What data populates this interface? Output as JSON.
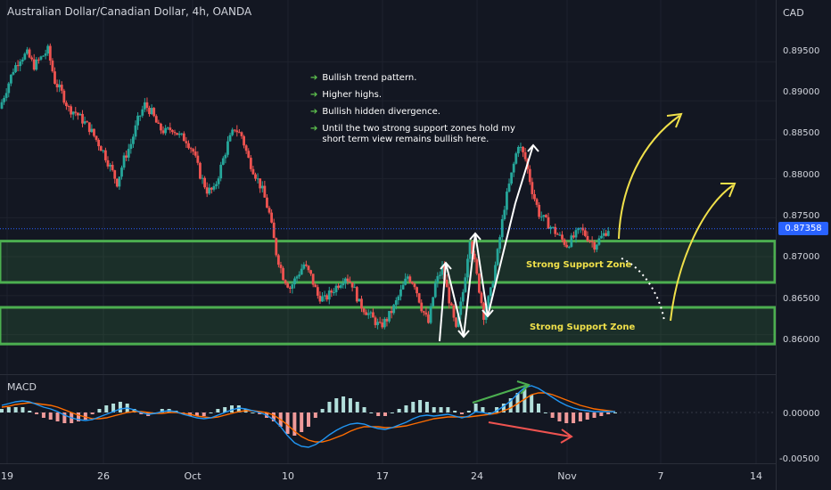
{
  "header": {
    "title": "Australian Dollar/Canadian Dollar, 4h, OANDA",
    "currency": "CAD"
  },
  "annotations": [
    "Bullish trend pattern.",
    "Higher highs.",
    "Bullish hidden divergence.",
    "Until the two strong support zones hold my short term view remains bullish here."
  ],
  "zones": {
    "upper_label": "Strong Support Zone",
    "lower_label": "Strong Support Zone"
  },
  "price_axis": {
    "ticks": [
      "0.89500",
      "0.89000",
      "0.88500",
      "0.88000",
      "0.87500",
      "0.87000",
      "0.86500",
      "0.86000"
    ],
    "last_price": "0.87358"
  },
  "macd_axis": {
    "ticks": [
      "0.00000",
      "-0.00500"
    ],
    "label": "MACD"
  },
  "time_axis": {
    "ticks": [
      "19",
      "26",
      "Oct",
      "10",
      "17",
      "24",
      "Nov",
      "7",
      "14"
    ]
  },
  "colors": {
    "up": "#26a69a",
    "down": "#ef5350",
    "zone": "#4caf50",
    "macd": "#2196f3",
    "signal": "#ff6d00",
    "annotation": "#f0e04a"
  },
  "chart_data": [
    {
      "type": "candlestick",
      "title": "Australian Dollar/Canadian Dollar, 4h, OANDA",
      "y_unit": "CAD",
      "ylim": [
        0.8555,
        0.8995
      ],
      "last_price": 0.87358,
      "x_ticks": [
        "19",
        "26",
        "Oct",
        "10",
        "17",
        "24",
        "Nov",
        "7",
        "14"
      ],
      "close_path": [
        0.889,
        0.8915,
        0.894,
        0.8955,
        0.896,
        0.8945,
        0.8955,
        0.8965,
        0.8925,
        0.891,
        0.889,
        0.8885,
        0.8875,
        0.8865,
        0.885,
        0.8835,
        0.8815,
        0.8795,
        0.8825,
        0.8845,
        0.8875,
        0.8895,
        0.8885,
        0.8865,
        0.886,
        0.8865,
        0.8855,
        0.885,
        0.8835,
        0.8805,
        0.8785,
        0.8785,
        0.8815,
        0.8845,
        0.8865,
        0.8855,
        0.8825,
        0.8805,
        0.8785,
        0.8755,
        0.8705,
        0.8675,
        0.866,
        0.8675,
        0.869,
        0.8675,
        0.865,
        0.8645,
        0.8655,
        0.8665,
        0.8675,
        0.8665,
        0.864,
        0.863,
        0.862,
        0.861,
        0.862,
        0.8635,
        0.8655,
        0.8675,
        0.8665,
        0.8635,
        0.8615,
        0.8665,
        0.8685,
        0.8645,
        0.8605,
        0.8655,
        0.8725,
        0.8675,
        0.8625,
        0.8655,
        0.8705,
        0.8765,
        0.8805,
        0.8845,
        0.8825,
        0.8785,
        0.8755,
        0.8745,
        0.8735,
        0.8725,
        0.8715,
        0.8725,
        0.8735,
        0.8725,
        0.8715,
        0.8725,
        0.8736
      ],
      "support_zones": [
        {
          "label": "Strong Support Zone",
          "range": [
            0.8667,
            0.872
          ]
        },
        {
          "label": "Strong Support Zone",
          "range": [
            0.8588,
            0.8635
          ]
        }
      ]
    },
    {
      "type": "macd",
      "ylim": [
        -0.0055,
        0.0035
      ],
      "ticks": [
        0.0,
        -0.005
      ],
      "macd": [
        0.0008,
        0.001,
        0.0012,
        0.0013,
        0.0012,
        0.0009,
        0.0006,
        0.0004,
        0.0001,
        -0.0003,
        -0.0006,
        -0.0008,
        -0.0009,
        -0.0008,
        -0.0005,
        -0.0002,
        0.0001,
        0.0004,
        0.0005,
        0.0003,
        0.0,
        -0.0002,
        -0.0001,
        0.0001,
        0.0002,
        0.0001,
        -0.0002,
        -0.0004,
        -0.0006,
        -0.0007,
        -0.0006,
        -0.0003,
        0.0,
        0.0003,
        0.0005,
        0.0004,
        0.0002,
        0.0,
        -0.0003,
        -0.0008,
        -0.0016,
        -0.0026,
        -0.0034,
        -0.0038,
        -0.0039,
        -0.0036,
        -0.0031,
        -0.0025,
        -0.002,
        -0.0016,
        -0.0013,
        -0.0012,
        -0.0013,
        -0.0016,
        -0.0018,
        -0.0019,
        -0.0017,
        -0.0014,
        -0.0011,
        -0.0007,
        -0.0004,
        -0.0003,
        -0.0004,
        -0.0003,
        -0.0002,
        -0.0004,
        -0.0006,
        -0.0004,
        0.0001,
        0.0,
        -0.0002,
        0.0002,
        0.0007,
        0.0013,
        0.0021,
        0.0028,
        0.003,
        0.0027,
        0.0022,
        0.0017,
        0.0012,
        0.0008,
        0.0005,
        0.0003,
        0.0002,
        0.0001,
        0.0001,
        0.0001,
        0.0001
      ],
      "signal": [
        0.0006,
        0.0007,
        0.0009,
        0.001,
        0.0011,
        0.001,
        0.0009,
        0.0008,
        0.0006,
        0.0003,
        0.0,
        -0.0003,
        -0.0005,
        -0.0007,
        -0.0007,
        -0.0006,
        -0.0004,
        -0.0002,
        0.0,
        0.0001,
        0.0001,
        0.0,
        -0.0001,
        -0.0001,
        0.0,
        0.0,
        -0.0001,
        -0.0002,
        -0.0004,
        -0.0005,
        -0.0006,
        -0.0005,
        -0.0003,
        -0.0001,
        0.0001,
        0.0002,
        0.0002,
        0.0001,
        0.0,
        -0.0003,
        -0.0008,
        -0.0014,
        -0.0021,
        -0.0027,
        -0.0031,
        -0.0033,
        -0.0033,
        -0.0031,
        -0.0028,
        -0.0025,
        -0.0021,
        -0.0018,
        -0.0016,
        -0.0016,
        -0.0016,
        -0.0017,
        -0.0017,
        -0.0016,
        -0.0015,
        -0.0013,
        -0.0011,
        -0.0009,
        -0.0007,
        -0.0006,
        -0.0005,
        -0.0005,
        -0.0005,
        -0.0005,
        -0.0004,
        -0.0003,
        -0.0002,
        -0.0001,
        0.0002,
        0.0005,
        0.001,
        0.0015,
        0.002,
        0.0022,
        0.0022,
        0.002,
        0.0017,
        0.0014,
        0.0011,
        0.0008,
        0.0006,
        0.0004,
        0.0003,
        0.0002,
        0.0001
      ]
    }
  ]
}
